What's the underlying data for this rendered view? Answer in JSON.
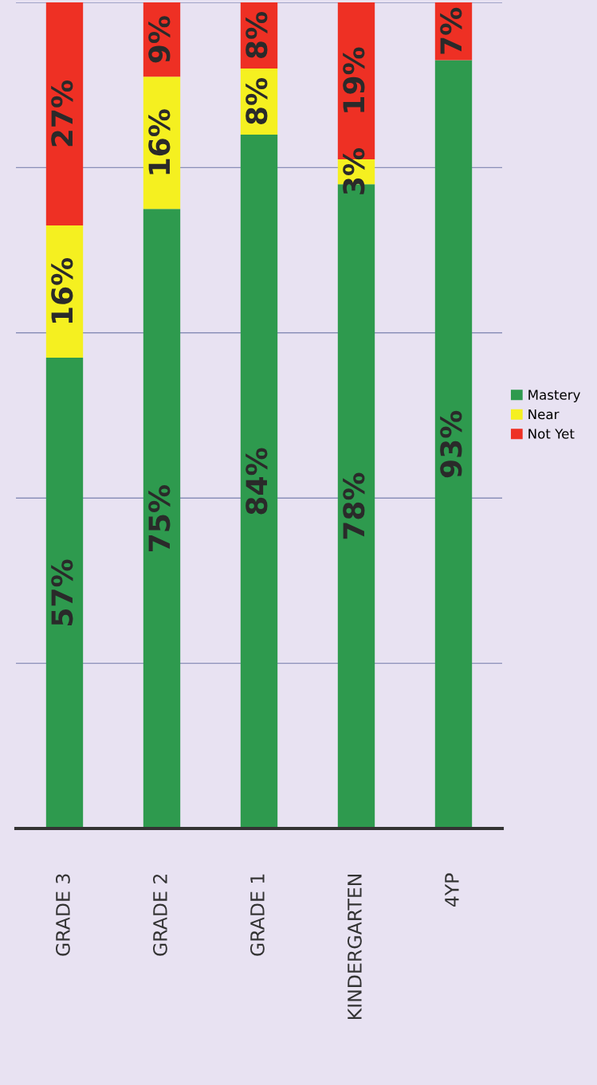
{
  "chart_data": {
    "type": "bar",
    "stacked": true,
    "categories": [
      "GRADE 3",
      "GRADE 2",
      "GRADE 1",
      "KINDERGARTEN",
      "4YP"
    ],
    "series": [
      {
        "name": "Mastery",
        "color": "#2e9a4e",
        "values": [
          57,
          75,
          84,
          78,
          93
        ],
        "value_labels": [
          "57%",
          "75%",
          "84%",
          "78%",
          "93%"
        ]
      },
      {
        "name": "Near",
        "color": "#f5f020",
        "values": [
          16,
          16,
          8,
          3,
          0
        ],
        "value_labels": [
          "16%",
          "16%",
          "8%",
          "3%",
          null
        ]
      },
      {
        "name": "Not Yet",
        "color": "#ee3024",
        "values": [
          27,
          9,
          8,
          19,
          7
        ],
        "value_labels": [
          "27%",
          "9%",
          "8%",
          "19%",
          "7%"
        ]
      }
    ],
    "ylim": [
      0,
      100
    ],
    "yticks": [
      {
        "value": 0,
        "label": null
      },
      {
        "value": 20,
        "label": null
      },
      {
        "value": 40,
        "label": null
      },
      {
        "value": 60,
        "label": null
      },
      {
        "value": 80,
        "label": null
      },
      {
        "value": 100,
        "label": null
      }
    ],
    "grid": "y",
    "legend": "right"
  }
}
